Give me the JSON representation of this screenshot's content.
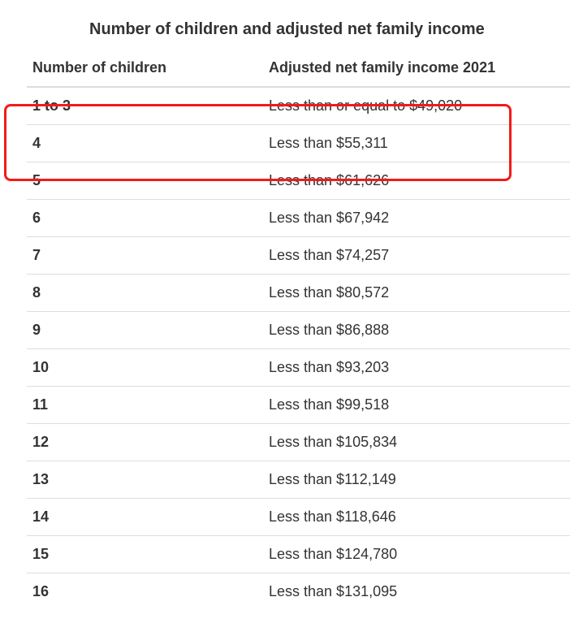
{
  "title": "Number of children and adjusted net family income",
  "table": {
    "columns": [
      "Number of children",
      "Adjusted net family income 2021"
    ],
    "rows": [
      {
        "children": "1 to 3",
        "income": "Less than or equal to $49,020"
      },
      {
        "children": "4",
        "income": "Less than $55,311"
      },
      {
        "children": "5",
        "income": "Less than $61,626"
      },
      {
        "children": "6",
        "income": "Less than $67,942"
      },
      {
        "children": "7",
        "income": "Less than $74,257"
      },
      {
        "children": "8",
        "income": "Less than $80,572"
      },
      {
        "children": "9",
        "income": "Less than $86,888"
      },
      {
        "children": "10",
        "income": "Less than $93,203"
      },
      {
        "children": "11",
        "income": "Less than $99,518"
      },
      {
        "children": "12",
        "income": "Less than $105,834"
      },
      {
        "children": "13",
        "income": "Less than $112,149"
      },
      {
        "children": "14",
        "income": "Less than $118,646"
      },
      {
        "children": "15",
        "income": "Less than $124,780"
      },
      {
        "children": "16",
        "income": "Less than $131,095"
      }
    ]
  },
  "annotation": {
    "type": "highlight-box",
    "color": "#f41a1a",
    "rows_covered": [
      "1 to 3",
      "4"
    ]
  },
  "colors": {
    "text": "#333333",
    "divider": "#dddddd",
    "background": "#ffffff"
  }
}
